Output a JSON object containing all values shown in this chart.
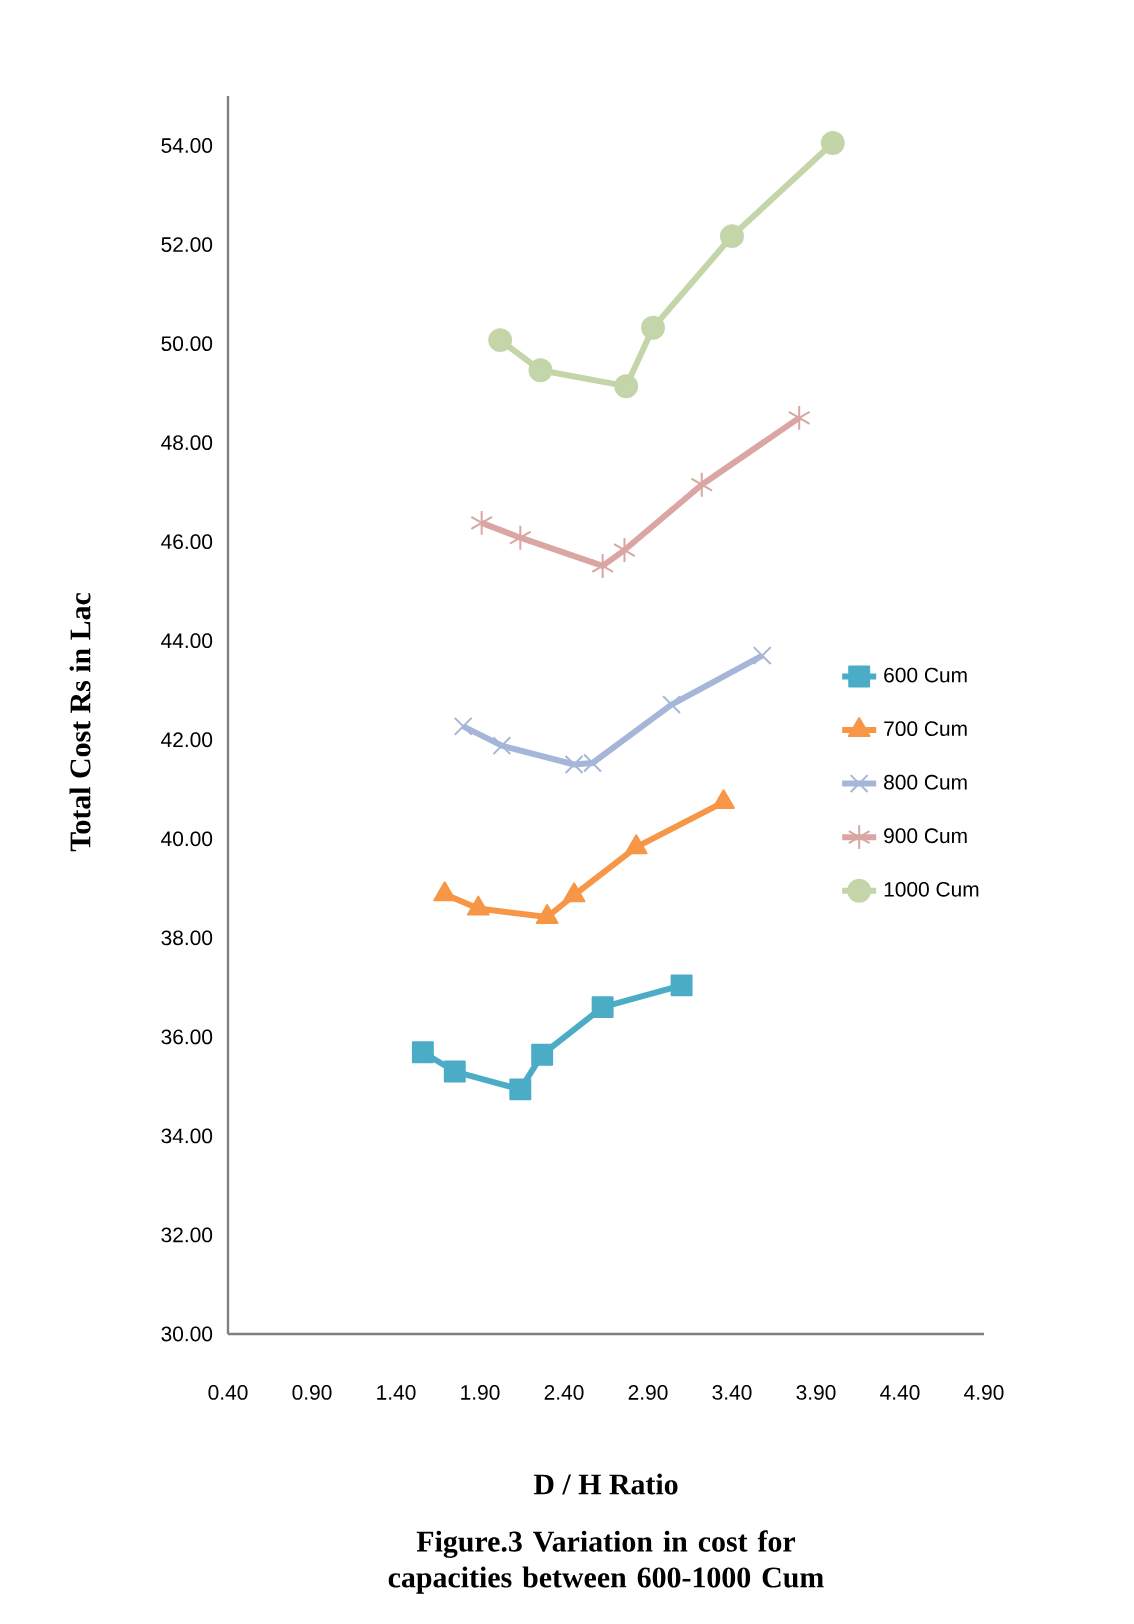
{
  "chart_data": {
    "type": "line",
    "title": "Figure.3 Variation in cost for capacities between 600-1000 Cum",
    "xlabel": "D / H Ratio",
    "ylabel": "Total Cost Rs in Lac",
    "xlim": [
      0.4,
      4.9
    ],
    "ylim": [
      30,
      55
    ],
    "xticks": [
      {
        "value": 0.4,
        "label": "0.40"
      },
      {
        "value": 0.9,
        "label": "0.90"
      },
      {
        "value": 1.4,
        "label": "1.40"
      },
      {
        "value": 1.9,
        "label": "1.90"
      },
      {
        "value": 2.4,
        "label": "2.40"
      },
      {
        "value": 2.9,
        "label": "2.90"
      },
      {
        "value": 3.4,
        "label": "3.40"
      },
      {
        "value": 3.9,
        "label": "3.90"
      },
      {
        "value": 4.4,
        "label": "4.40"
      },
      {
        "value": 4.9,
        "label": "4.90"
      }
    ],
    "yticks": [
      {
        "value": 30,
        "label": "30.00"
      },
      {
        "value": 32,
        "label": "32.00"
      },
      {
        "value": 34,
        "label": "34.00"
      },
      {
        "value": 36,
        "label": "36.00"
      },
      {
        "value": 38,
        "label": "38.00"
      },
      {
        "value": 40,
        "label": "40.00"
      },
      {
        "value": 42,
        "label": "42.00"
      },
      {
        "value": 44,
        "label": "44.00"
      },
      {
        "value": 46,
        "label": "46.00"
      },
      {
        "value": 48,
        "label": "48.00"
      },
      {
        "value": 50,
        "label": "50.00"
      },
      {
        "value": 52,
        "label": "52.00"
      },
      {
        "value": 54,
        "label": "54.00"
      }
    ],
    "grid": false,
    "legend": "right",
    "series": [
      {
        "name": "600 Cum",
        "color": "#4bacc6",
        "marker": "square",
        "x": [
          1.56,
          1.75,
          2.14,
          2.27,
          2.63,
          3.1
        ],
        "values": [
          35.69,
          35.3,
          34.94,
          35.64,
          36.6,
          37.04
        ]
      },
      {
        "name": "700 Cum",
        "color": "#f79646",
        "marker": "triangle",
        "x": [
          1.69,
          1.89,
          2.3,
          2.46,
          2.83,
          3.35
        ],
        "values": [
          38.88,
          38.59,
          38.42,
          38.86,
          39.83,
          40.74
        ]
      },
      {
        "name": "800 Cum",
        "color": "#a5b6d9",
        "marker": "cross",
        "x": [
          1.8,
          2.03,
          2.46,
          2.57,
          3.04,
          3.58
        ],
        "values": [
          42.27,
          41.88,
          41.5,
          41.53,
          42.71,
          43.7
        ]
      },
      {
        "name": "900 Cum",
        "color": "#d9a6a3",
        "marker": "cross",
        "x": [
          1.91,
          2.14,
          2.63,
          2.76,
          3.22,
          3.8
        ],
        "values": [
          46.38,
          46.08,
          45.51,
          45.83,
          47.15,
          48.5
        ]
      },
      {
        "name": "1000 Cum",
        "color": "#c3d5a9",
        "marker": "circle",
        "x": [
          2.02,
          2.26,
          2.77,
          2.93,
          3.4,
          4.0
        ],
        "values": [
          50.07,
          49.46,
          49.14,
          50.32,
          52.17,
          54.05
        ]
      }
    ]
  }
}
